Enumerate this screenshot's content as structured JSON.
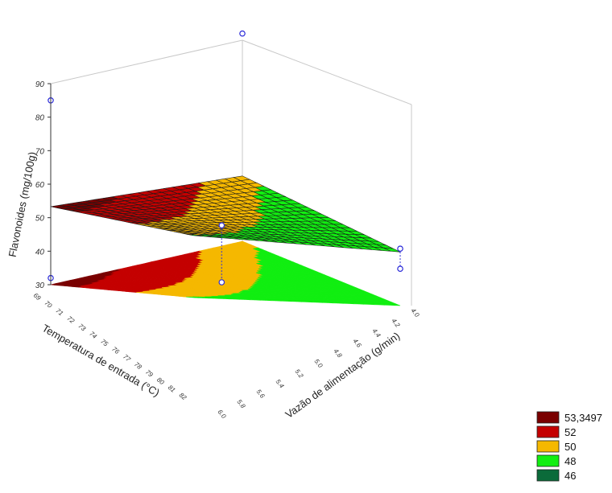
{
  "chart_data": {
    "type": "surface3d",
    "zlabel": "Flavonoides (mg/100g)",
    "xlabel": "Temperatura de entrada (°C)",
    "ylabel": "Vazão de alimentação (g/min)",
    "zticks": [
      "30",
      "40",
      "50",
      "60",
      "70",
      "80",
      "90"
    ],
    "zlim": [
      30,
      90
    ],
    "xticks": [
      "69",
      "70",
      "71",
      "72",
      "73",
      "74",
      "75",
      "76",
      "77",
      "78",
      "79",
      "80",
      "81",
      "82"
    ],
    "xlim": [
      69,
      82
    ],
    "yticks": [
      "4.0",
      "4.2",
      "4.4",
      "4.6",
      "4.8",
      "5.0",
      "5.2",
      "5.4",
      "5.6",
      "5.8",
      "6.0"
    ],
    "ylim": [
      4.0,
      6.0
    ],
    "surface_corners": [
      {
        "temperatura": 69,
        "vazao": 6.0,
        "flavonoides": 53.3
      },
      {
        "temperatura": 69,
        "vazao": 4.0,
        "flavonoides": 49.5
      },
      {
        "temperatura": 82,
        "vazao": 4.0,
        "flavonoides": 46.0
      },
      {
        "temperatura": 82,
        "vazao": 6.0,
        "flavonoides": 48.5
      }
    ],
    "observed_points": [
      {
        "temperatura": 69,
        "vazao": 6.0,
        "flavonoides": 85
      },
      {
        "temperatura": 69,
        "vazao": 6.0,
        "flavonoides": 32
      },
      {
        "temperatura": 69,
        "vazao": 4.0,
        "flavonoides": 92
      },
      {
        "temperatura": 82,
        "vazao": 4.0,
        "flavonoides": 47
      },
      {
        "temperatura": 82,
        "vazao": 4.0,
        "flavonoides": 41
      },
      {
        "temperatura": 75.5,
        "vazao": 5.0,
        "flavonoides": 47
      },
      {
        "temperatura": 75.5,
        "vazao": 5.0,
        "flavonoides": 30
      }
    ],
    "legend": [
      {
        "label": "53,3497",
        "color": "#7a0000"
      },
      {
        "label": "52",
        "color": "#c40000"
      },
      {
        "label": "50",
        "color": "#f5b800"
      },
      {
        "label": "48",
        "color": "#11ee11"
      },
      {
        "label": "46",
        "color": "#0b6b3a"
      }
    ],
    "grid": true
  }
}
